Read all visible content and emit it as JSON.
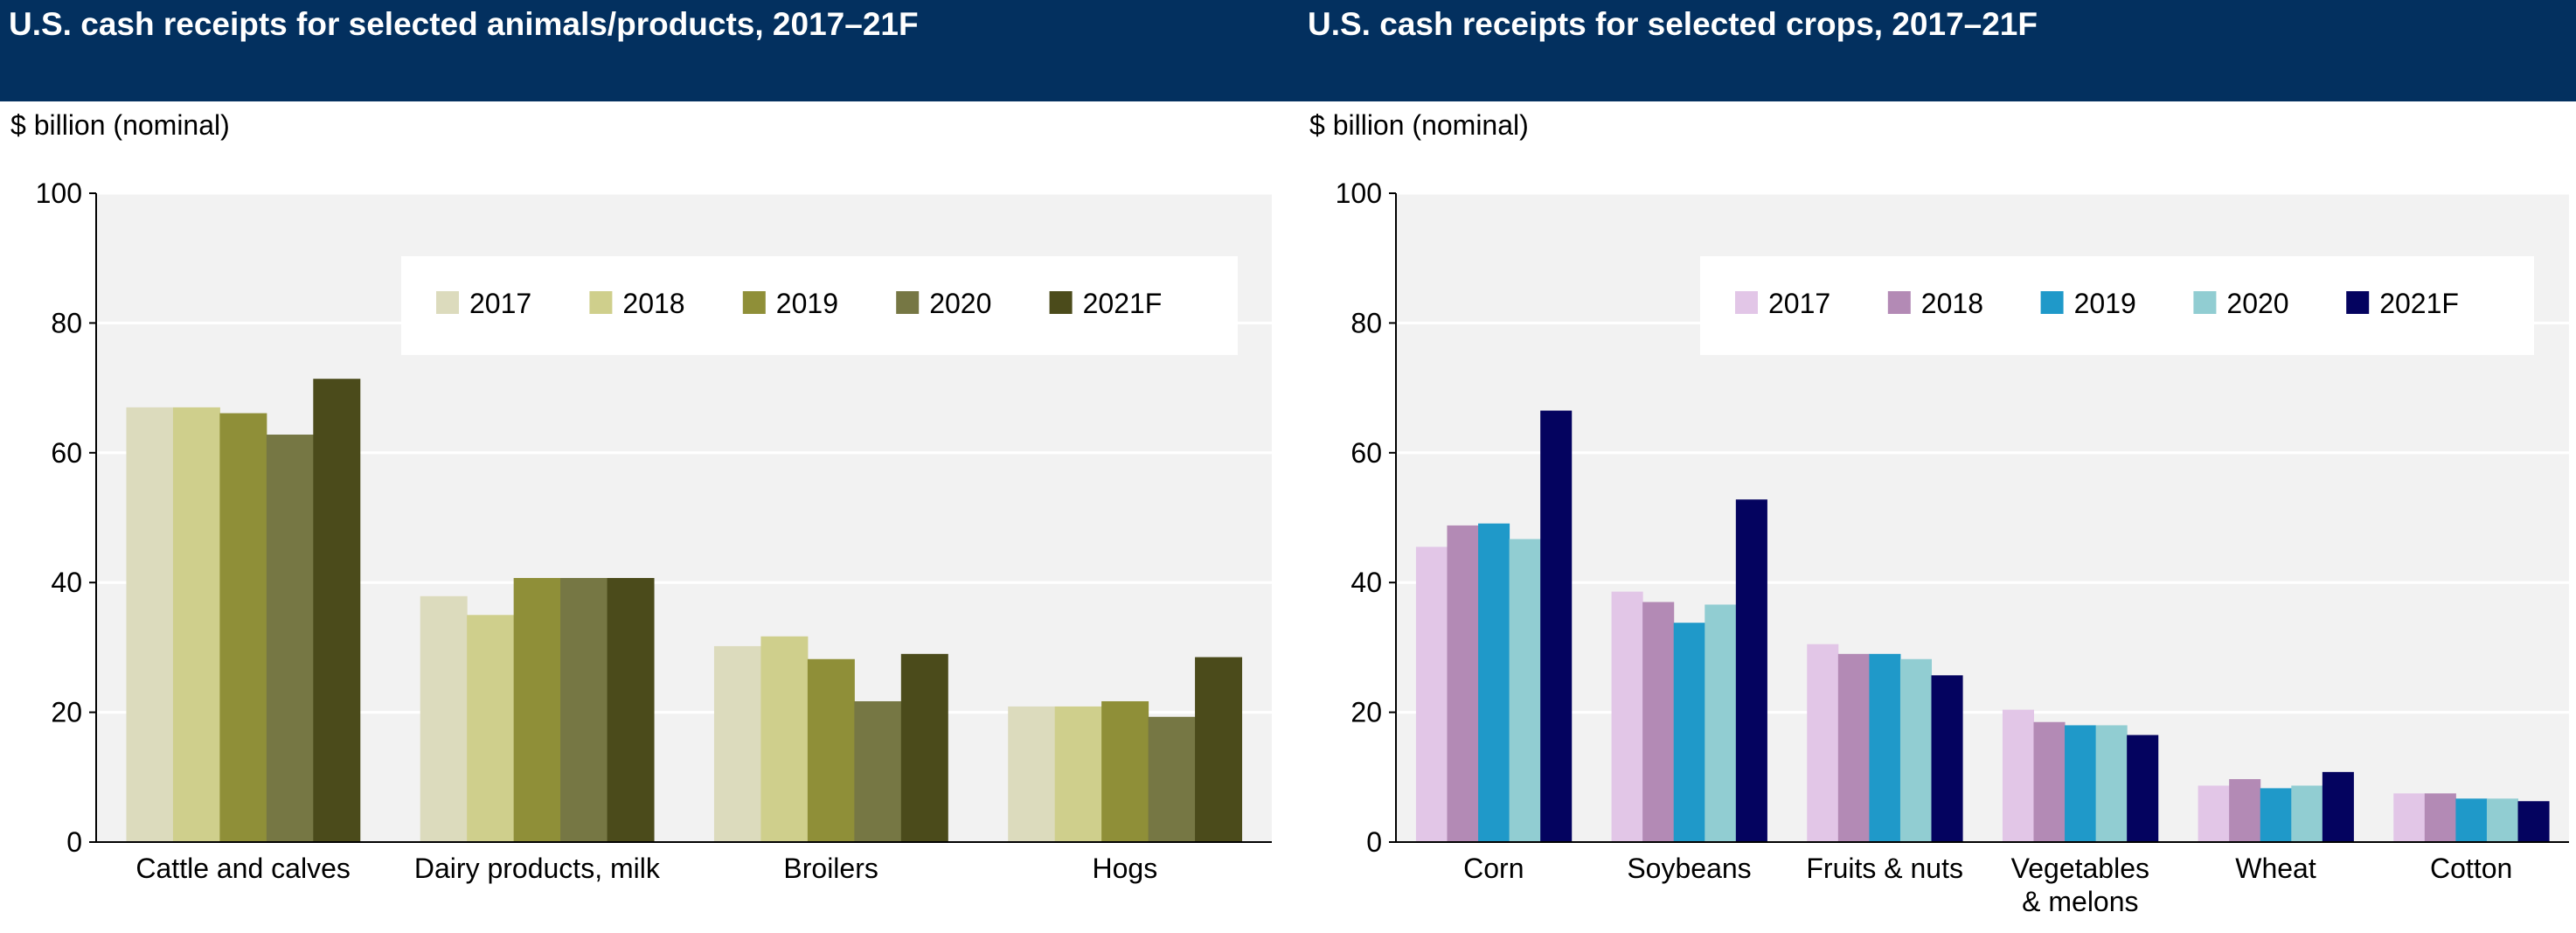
{
  "chart_data": [
    {
      "type": "bar",
      "title": "U.S. cash receipts for selected animals/products, 2017–21F",
      "ylabel": "$ billion (nominal)",
      "xlabel": "",
      "ylim": [
        0,
        100
      ],
      "yticks": [
        0,
        20,
        40,
        60,
        80,
        100
      ],
      "grid": true,
      "legend": "top-right",
      "categories": [
        "Cattle and calves",
        "Dairy products, milk",
        "Broilers",
        "Hogs"
      ],
      "series": [
        {
          "name": "2017",
          "color": "#dcdbbd",
          "values": [
            67.0,
            37.9,
            30.2,
            20.9
          ]
        },
        {
          "name": "2018",
          "color": "#cfcf8c",
          "values": [
            67.0,
            35.0,
            31.7,
            20.9
          ]
        },
        {
          "name": "2019",
          "color": "#8f8f38",
          "values": [
            66.1,
            40.7,
            28.2,
            21.7
          ]
        },
        {
          "name": "2020",
          "color": "#767744",
          "values": [
            62.8,
            40.7,
            21.7,
            19.3
          ]
        },
        {
          "name": "2021F",
          "color": "#4b4b1b",
          "values": [
            71.4,
            40.7,
            29.0,
            28.5
          ]
        }
      ]
    },
    {
      "type": "bar",
      "title": "U.S. cash receipts for selected crops, 2017–21F",
      "ylabel": "$ billion (nominal)",
      "xlabel": "",
      "ylim": [
        0,
        100
      ],
      "yticks": [
        0,
        20,
        40,
        60,
        80,
        100
      ],
      "grid": true,
      "legend": "top-right",
      "categories": [
        "Corn",
        "Soybeans",
        "Fruits & nuts",
        "Vegetables\n& melons",
        "Wheat",
        "Cotton"
      ],
      "series": [
        {
          "name": "2017",
          "color": "#e2c6e7",
          "values": [
            45.5,
            38.6,
            30.5,
            20.4,
            8.7,
            7.5
          ]
        },
        {
          "name": "2018",
          "color": "#b38ab5",
          "values": [
            48.8,
            37.0,
            29.0,
            18.5,
            9.7,
            7.5
          ]
        },
        {
          "name": "2019",
          "color": "#1f99c9",
          "values": [
            49.1,
            33.8,
            29.0,
            18.0,
            8.3,
            6.7
          ]
        },
        {
          "name": "2020",
          "color": "#91cdd2",
          "values": [
            46.7,
            36.6,
            28.2,
            18.0,
            8.7,
            6.7
          ]
        },
        {
          "name": "2021F",
          "color": "#04035f",
          "values": [
            66.5,
            52.8,
            25.7,
            16.5,
            10.8,
            6.3
          ]
        }
      ]
    }
  ],
  "colors": {
    "header_bg": "#03305f",
    "plot_bg": "#f2f2f2"
  }
}
